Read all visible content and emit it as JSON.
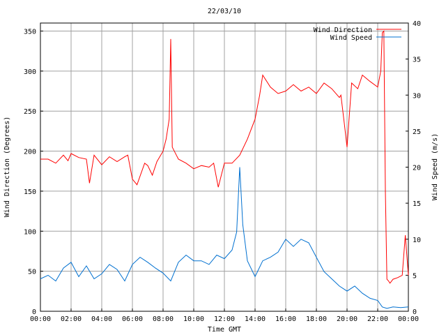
{
  "chart_data": {
    "type": "line",
    "title": "22/03/10",
    "xlabel": "Time GMT",
    "ylabel": "Wind Direction (Degrees)",
    "y2label": "Wind Speed (m/s)",
    "x_ticks": [
      "00:00",
      "02:00",
      "04:00",
      "06:00",
      "08:00",
      "10:00",
      "12:00",
      "14:00",
      "16:00",
      "18:00",
      "20:00",
      "22:00",
      "00:00"
    ],
    "y_ticks": [
      "0",
      "50",
      "100",
      "150",
      "200",
      "250",
      "300",
      "350"
    ],
    "y2_ticks": [
      "0",
      "5",
      "10",
      "15",
      "20",
      "25",
      "30",
      "35",
      "40"
    ],
    "xlim": [
      0,
      24
    ],
    "ylim": [
      0,
      360
    ],
    "y2lim": [
      0,
      40
    ],
    "grid": true,
    "legend_position": "top-right",
    "series": [
      {
        "name": "Wind Direction",
        "axis": "left",
        "color": "#ff0000",
        "x": [
          0,
          0.5,
          1,
          1.5,
          1.8,
          2,
          2.5,
          3,
          3.2,
          3.5,
          4,
          4.5,
          5,
          5.5,
          5.7,
          6,
          6.3,
          6.8,
          7,
          7.3,
          7.6,
          8,
          8.2,
          8.4,
          8.5,
          8.6,
          9,
          9.5,
          10,
          10.5,
          11,
          11.3,
          11.6,
          12,
          12.5,
          13,
          13.5,
          14,
          14.3,
          14.5,
          15,
          15.5,
          16,
          16.5,
          17,
          17.5,
          18,
          18.5,
          19,
          19.5,
          19.6,
          19.8,
          20,
          20.3,
          20.7,
          21,
          21.5,
          22,
          22.2,
          22.3,
          22.4,
          22.5,
          22.6,
          22.7,
          22.8,
          23,
          23.3,
          23.6,
          23.8,
          24
        ],
        "values": [
          190,
          190,
          185,
          195,
          188,
          197,
          192,
          190,
          160,
          195,
          183,
          193,
          187,
          193,
          195,
          165,
          158,
          185,
          182,
          170,
          187,
          200,
          215,
          240,
          340,
          205,
          190,
          185,
          178,
          182,
          180,
          185,
          155,
          185,
          185,
          195,
          215,
          240,
          270,
          295,
          280,
          272,
          275,
          283,
          275,
          280,
          272,
          285,
          278,
          267,
          270,
          238,
          205,
          285,
          278,
          295,
          287,
          280,
          300,
          348,
          350,
          150,
          40,
          38,
          35,
          40,
          42,
          45,
          95,
          45
        ]
      },
      {
        "name": "Wind Speed",
        "axis": "right",
        "color": "#0070d0",
        "x": [
          0,
          0.5,
          1,
          1.5,
          2,
          2.5,
          3,
          3.5,
          4,
          4.5,
          5,
          5.5,
          6,
          6.5,
          7,
          7.5,
          8,
          8.5,
          9,
          9.5,
          10,
          10.5,
          11,
          11.5,
          12,
          12.5,
          12.8,
          13,
          13.2,
          13.5,
          14,
          14.5,
          15,
          15.5,
          16,
          16.5,
          17,
          17.5,
          18,
          18.5,
          19,
          19.5,
          20,
          20.5,
          21,
          21.5,
          22,
          22.3,
          22.6,
          23,
          23.5,
          24
        ],
        "values": [
          4.5,
          5,
          4.2,
          6,
          6.8,
          4.8,
          6.3,
          4.5,
          5.2,
          6.5,
          5.8,
          4.2,
          6.5,
          7.5,
          6.8,
          6,
          5.3,
          4.2,
          6.8,
          7.8,
          7,
          7,
          6.5,
          7.8,
          7.3,
          8.5,
          11,
          20,
          12,
          7,
          4.8,
          7,
          7.5,
          8.2,
          10,
          9,
          10,
          9.5,
          7.5,
          5.5,
          4.5,
          3.5,
          2.8,
          3.5,
          2.5,
          1.8,
          1.5,
          0.6,
          0.4,
          0.6,
          0.5,
          0.6
        ]
      }
    ]
  }
}
